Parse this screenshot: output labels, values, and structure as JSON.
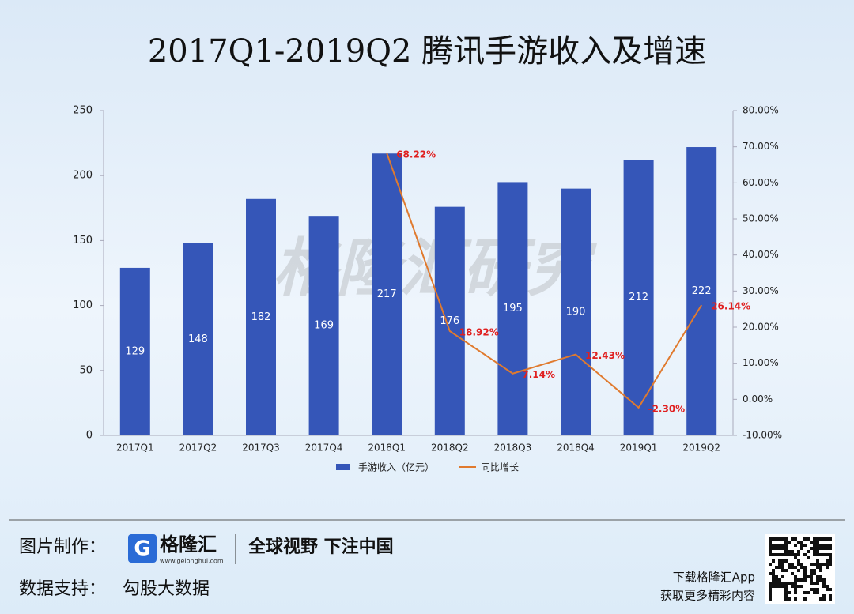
{
  "chart_data": {
    "type": "bar",
    "title": "2017Q1-2019Q2 腾讯手游收入及增速",
    "watermark": "格隆汇研究",
    "categories": [
      "2017Q1",
      "2017Q2",
      "2017Q3",
      "2017Q4",
      "2018Q1",
      "2018Q2",
      "2018Q3",
      "2018Q4",
      "2019Q1",
      "2019Q2"
    ],
    "series": [
      {
        "name": "手游收入（亿元）",
        "color": "#3556b8",
        "type": "bar",
        "values": [
          129,
          148,
          182,
          169,
          217,
          176,
          195,
          190,
          212,
          222
        ]
      },
      {
        "name": "同比增长",
        "color": "#e07a2e",
        "type": "line",
        "axis": "y2",
        "label_color": "#e02020",
        "values": [
          null,
          null,
          null,
          null,
          68.22,
          18.92,
          7.14,
          12.43,
          -2.3,
          26.14
        ],
        "value_labels": [
          null,
          null,
          null,
          null,
          "68.22%",
          "18.92%",
          "7.14%",
          "12.43%",
          "-2.30%",
          "26.14%"
        ]
      }
    ],
    "ylim": [
      0,
      250
    ],
    "yticks": [
      0,
      50,
      100,
      150,
      200,
      250
    ],
    "y2lim": [
      -10,
      80
    ],
    "y2ticks": [
      {
        "value": -10,
        "label": "-10.00%"
      },
      {
        "value": 0,
        "label": "0.00%"
      },
      {
        "value": 10,
        "label": "10.00%"
      },
      {
        "value": 20,
        "label": "20.00%"
      },
      {
        "value": 30,
        "label": "30.00%"
      },
      {
        "value": 40,
        "label": "40.00%"
      },
      {
        "value": 50,
        "label": "50.00%"
      },
      {
        "value": 60,
        "label": "60.00%"
      },
      {
        "value": 70,
        "label": "70.00%"
      },
      {
        "value": 80,
        "label": "80.00%"
      }
    ],
    "legend": "bottom"
  },
  "footer": {
    "made_by_label": "图片制作：",
    "brand": "格隆汇",
    "site": "www.gelonghui.com",
    "slogan": "全球视野 下注中国",
    "data_label": "数据支持：",
    "data_source": "勾股大数据",
    "download": "下载格隆汇App",
    "more": "获取更多精彩内容"
  }
}
